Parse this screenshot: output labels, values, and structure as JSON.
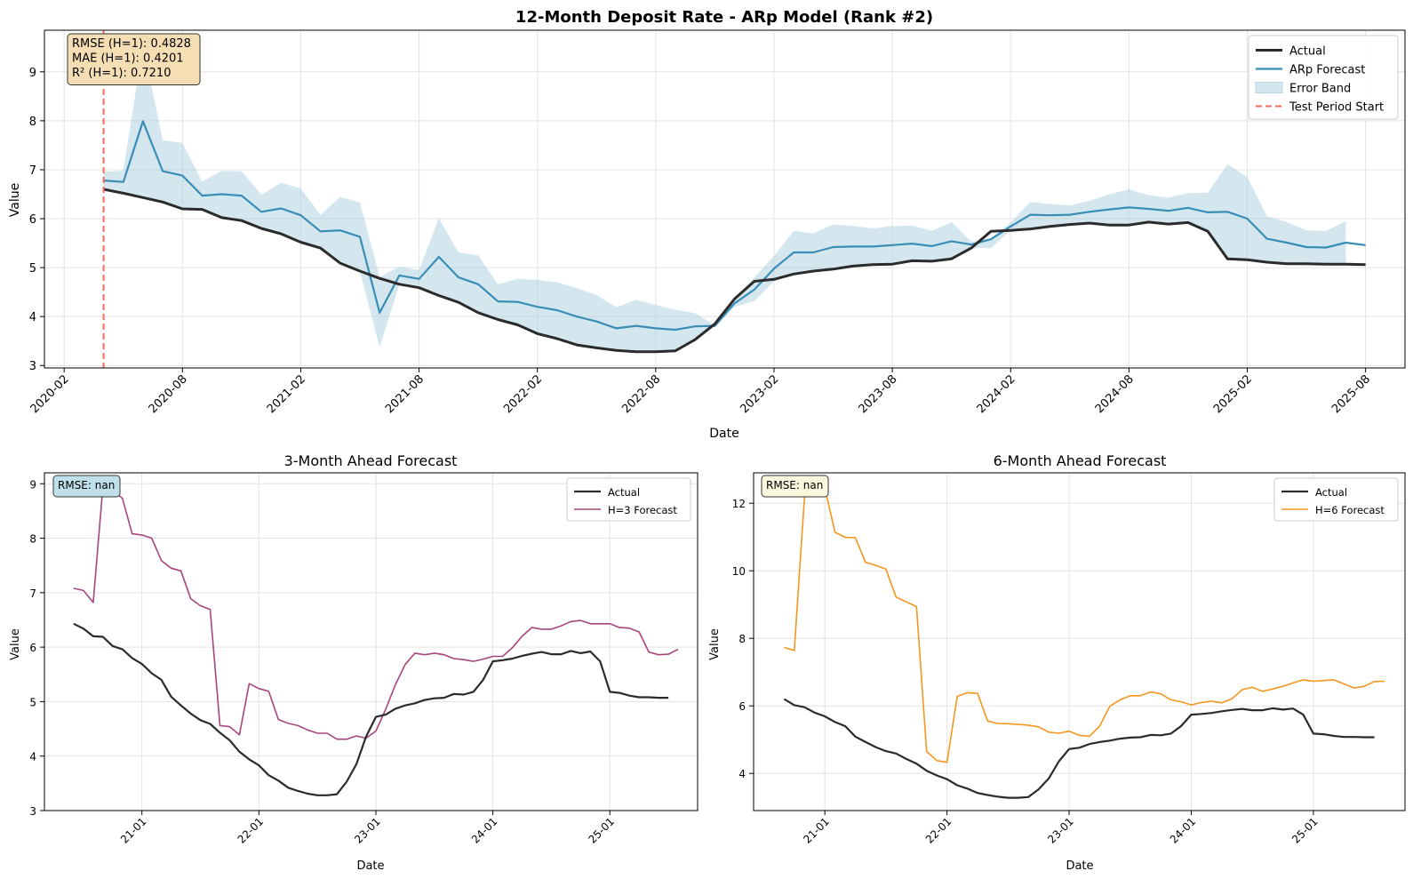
{
  "chart_data": [
    {
      "type": "line",
      "title": "12-Month Deposit Rate - ARp Model (Rank #2)",
      "xlabel": "Date",
      "ylabel": "Value",
      "x_ticks": [
        "2020-02",
        "2020-08",
        "2021-02",
        "2021-08",
        "2022-02",
        "2022-08",
        "2023-02",
        "2023-08",
        "2024-02",
        "2024-08",
        "2025-02",
        "2025-08"
      ],
      "x_range": [
        "2020-01",
        "2025-10"
      ],
      "y_ticks": [
        3,
        4,
        5,
        6,
        7,
        8,
        9
      ],
      "y_range": [
        2.95,
        9.85
      ],
      "grid": true,
      "legend_position": "top-right",
      "stats": [
        "RMSE (H=1): 0.4828",
        "MAE (H=1): 0.4201",
        "R² (H=1): 0.7210"
      ],
      "test_period_start": "2020-04",
      "series": [
        {
          "name": "Actual",
          "color": "#2b2b2b",
          "x_start": "2020-04",
          "values": [
            6.6,
            6.52,
            6.43,
            6.34,
            6.2,
            6.19,
            6.02,
            5.96,
            5.8,
            5.69,
            5.52,
            5.4,
            5.09,
            4.93,
            4.78,
            4.66,
            4.59,
            4.43,
            4.29,
            4.08,
            3.94,
            3.83,
            3.65,
            3.55,
            3.42,
            3.36,
            3.31,
            3.28,
            3.28,
            3.3,
            3.53,
            3.85,
            4.36,
            4.72,
            4.76,
            4.87,
            4.93,
            4.97,
            5.03,
            5.06,
            5.07,
            5.14,
            5.13,
            5.18,
            5.4,
            5.74,
            5.76,
            5.79,
            5.84,
            5.88,
            5.91,
            5.87,
            5.87,
            5.93,
            5.89,
            5.92,
            5.74,
            5.18,
            5.16,
            5.11,
            5.08,
            5.08,
            5.07,
            5.07,
            5.06
          ]
        },
        {
          "name": "ARp Forecast",
          "color": "#3a8db5",
          "x_start": "2020-04",
          "values": [
            6.78,
            6.75,
            7.99,
            6.97,
            6.88,
            6.47,
            6.5,
            6.47,
            6.14,
            6.21,
            6.07,
            5.74,
            5.76,
            5.63,
            4.08,
            4.84,
            4.77,
            5.22,
            4.8,
            4.66,
            4.31,
            4.3,
            4.2,
            4.13,
            4.0,
            3.9,
            3.76,
            3.81,
            3.76,
            3.73,
            3.8,
            3.81,
            4.27,
            4.55,
            4.98,
            5.31,
            5.31,
            5.42,
            5.43,
            5.43,
            5.46,
            5.49,
            5.44,
            5.54,
            5.47,
            5.58,
            5.84,
            6.08,
            6.07,
            6.08,
            6.14,
            6.19,
            6.23,
            6.2,
            6.16,
            6.22,
            6.13,
            6.14,
            6.0,
            5.59,
            5.51,
            5.42,
            5.41,
            5.51,
            5.46
          ]
        },
        {
          "name": "Error Band",
          "color": "#aacfe0",
          "x_start": "2020-04",
          "upper": [
            6.96,
            6.98,
            9.55,
            7.6,
            7.55,
            6.76,
            6.98,
            6.97,
            6.49,
            6.73,
            6.62,
            6.08,
            6.44,
            6.33,
            4.81,
            5.02,
            4.95,
            6.01,
            5.31,
            5.25,
            4.66,
            4.77,
            4.75,
            4.7,
            4.58,
            4.44,
            4.19,
            4.34,
            4.24,
            4.14,
            4.07,
            3.82,
            4.33,
            4.8,
            5.24,
            5.75,
            5.7,
            5.88,
            5.85,
            5.8,
            5.85,
            5.86,
            5.75,
            5.93,
            5.53,
            5.6,
            5.92,
            6.34,
            6.3,
            6.27,
            6.37,
            6.5,
            6.6,
            6.48,
            6.43,
            6.52,
            6.53,
            7.11,
            6.85,
            6.05,
            5.93,
            5.76,
            5.75,
            5.95
          ],
          "lower": [
            6.6,
            6.52,
            6.43,
            6.34,
            6.2,
            6.19,
            6.02,
            5.96,
            5.8,
            5.69,
            5.52,
            5.4,
            5.09,
            4.93,
            3.37,
            4.66,
            4.59,
            4.43,
            4.29,
            4.08,
            3.94,
            3.83,
            3.65,
            3.55,
            3.42,
            3.36,
            3.31,
            3.28,
            3.28,
            3.3,
            3.53,
            3.8,
            4.2,
            4.32,
            4.72,
            4.87,
            4.93,
            4.97,
            5.03,
            5.06,
            5.07,
            5.14,
            5.13,
            5.18,
            5.4,
            5.4,
            5.76,
            5.79,
            5.84,
            5.88,
            5.91,
            5.87,
            5.87,
            5.93,
            5.89,
            5.92,
            5.74,
            5.18,
            5.16,
            5.11,
            5.08,
            5.08,
            5.07,
            5.07
          ]
        },
        {
          "name": "Test Period Start",
          "color": "#f26b5e"
        }
      ]
    },
    {
      "type": "line",
      "title": "3-Month Ahead Forecast",
      "xlabel": "Date",
      "ylabel": "Value",
      "x_ticks": [
        "21-01",
        "22-01",
        "23-01",
        "24-01",
        "25-01"
      ],
      "x_range": [
        "2020-03",
        "2025-10"
      ],
      "y_ticks": [
        3,
        4,
        5,
        6,
        7,
        8,
        9
      ],
      "y_range": [
        3.0,
        9.2
      ],
      "grid": true,
      "legend_position": "top-right",
      "stats": [
        "RMSE: nan"
      ],
      "series": [
        {
          "name": "Actual",
          "color": "#2b2b2b",
          "x_start": "2020-06",
          "values": [
            6.43,
            6.34,
            6.2,
            6.19,
            6.02,
            5.96,
            5.8,
            5.69,
            5.52,
            5.4,
            5.09,
            4.93,
            4.78,
            4.66,
            4.59,
            4.43,
            4.29,
            4.08,
            3.94,
            3.83,
            3.65,
            3.55,
            3.42,
            3.36,
            3.31,
            3.28,
            3.28,
            3.3,
            3.53,
            3.85,
            4.36,
            4.72,
            4.76,
            4.87,
            4.93,
            4.97,
            5.03,
            5.06,
            5.07,
            5.14,
            5.13,
            5.18,
            5.4,
            5.74,
            5.76,
            5.79,
            5.84,
            5.88,
            5.91,
            5.87,
            5.87,
            5.93,
            5.89,
            5.92,
            5.74,
            5.18,
            5.16,
            5.11,
            5.08,
            5.08,
            5.07,
            5.07
          ]
        },
        {
          "name": "H=3 Forecast",
          "color": "#a6467c",
          "x_start": "2020-06",
          "values": [
            7.08,
            7.04,
            6.82,
            8.95,
            8.88,
            8.73,
            8.08,
            8.06,
            8.0,
            7.59,
            7.45,
            7.4,
            6.89,
            6.76,
            6.69,
            4.56,
            4.54,
            4.39,
            5.33,
            5.24,
            5.19,
            4.67,
            4.6,
            4.56,
            4.48,
            4.42,
            4.42,
            4.31,
            4.31,
            4.37,
            4.33,
            4.46,
            4.86,
            5.31,
            5.68,
            5.89,
            5.86,
            5.89,
            5.86,
            5.79,
            5.77,
            5.74,
            5.78,
            5.83,
            5.83,
            5.99,
            6.2,
            6.36,
            6.33,
            6.33,
            6.39,
            6.47,
            6.49,
            6.43,
            6.43,
            6.43,
            6.36,
            6.35,
            6.28,
            5.91,
            5.86,
            5.87,
            5.96
          ]
        }
      ]
    },
    {
      "type": "line",
      "title": "6-Month Ahead Forecast",
      "xlabel": "Date",
      "ylabel": "Value",
      "x_ticks": [
        "21-01",
        "22-01",
        "23-01",
        "24-01",
        "25-01"
      ],
      "x_range": [
        "2020-06",
        "2025-10"
      ],
      "y_ticks": [
        4,
        6,
        8,
        10,
        12
      ],
      "y_range": [
        2.9,
        12.9
      ],
      "grid": true,
      "legend_position": "top-right",
      "stats": [
        "RMSE: nan"
      ],
      "series": [
        {
          "name": "Actual",
          "color": "#2b2b2b",
          "x_start": "2020-09",
          "values": [
            6.2,
            6.02,
            5.96,
            5.8,
            5.69,
            5.52,
            5.4,
            5.09,
            4.93,
            4.78,
            4.66,
            4.59,
            4.43,
            4.29,
            4.08,
            3.94,
            3.83,
            3.65,
            3.55,
            3.42,
            3.36,
            3.31,
            3.28,
            3.28,
            3.3,
            3.53,
            3.85,
            4.36,
            4.72,
            4.76,
            4.87,
            4.93,
            4.97,
            5.03,
            5.06,
            5.07,
            5.14,
            5.13,
            5.18,
            5.4,
            5.74,
            5.76,
            5.79,
            5.84,
            5.88,
            5.91,
            5.87,
            5.87,
            5.93,
            5.89,
            5.92,
            5.74,
            5.18,
            5.16,
            5.11,
            5.08,
            5.08,
            5.07,
            5.07
          ]
        },
        {
          "name": "H=6 Forecast",
          "color": "#f5961e",
          "x_start": "2020-09",
          "values": [
            7.73,
            7.64,
            12.2,
            12.6,
            12.45,
            11.14,
            10.99,
            10.98,
            10.25,
            10.16,
            10.05,
            9.22,
            9.08,
            8.94,
            4.65,
            4.38,
            4.33,
            6.28,
            6.39,
            6.37,
            5.55,
            5.48,
            5.47,
            5.45,
            5.43,
            5.38,
            5.22,
            5.19,
            5.25,
            5.13,
            5.1,
            5.4,
            5.99,
            6.18,
            6.3,
            6.3,
            6.41,
            6.36,
            6.18,
            6.12,
            6.03,
            6.1,
            6.14,
            6.09,
            6.21,
            6.48,
            6.55,
            6.43,
            6.5,
            6.58,
            6.68,
            6.77,
            6.73,
            6.75,
            6.77,
            6.65,
            6.53,
            6.58,
            6.72,
            6.73
          ]
        }
      ]
    }
  ]
}
